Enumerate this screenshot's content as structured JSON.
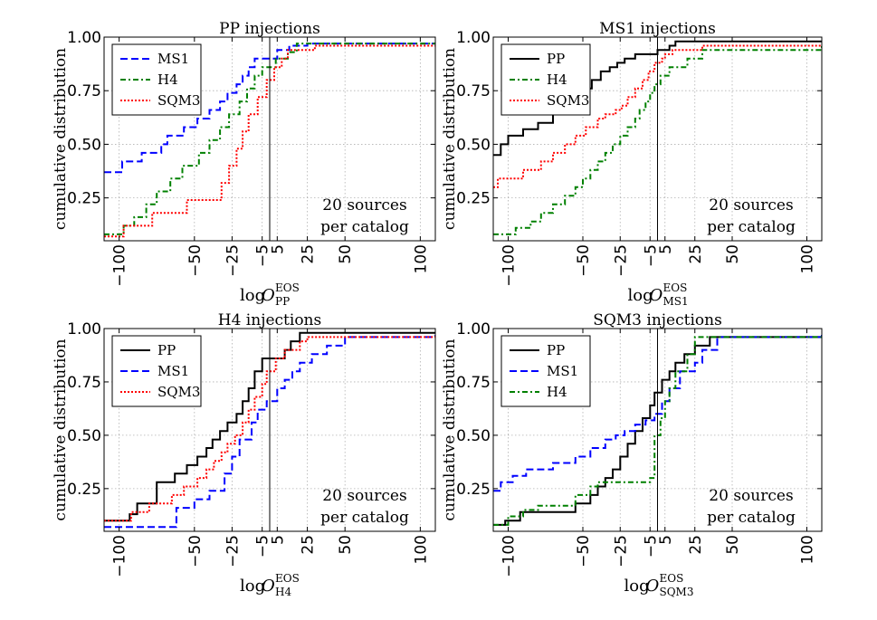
{
  "chart_data": [
    {
      "type": "line",
      "title": "PP injections",
      "xlabel_base": "log",
      "xlabel_sym": "O",
      "xlabel_sup": "EOS",
      "xlabel_sub": "PP",
      "ylabel": "cumulative distribution",
      "xlim": [
        -110,
        110
      ],
      "ylim": [
        0.05,
        1.0
      ],
      "xticks": [
        -100,
        -50,
        -25,
        -5,
        5,
        25,
        50,
        100
      ],
      "xtick_labels": [
        "−100",
        "−50",
        "−25",
        "−5",
        "5",
        "25",
        "50",
        "100"
      ],
      "yticks": [
        0.25,
        0.5,
        0.75,
        1.0
      ],
      "ytick_labels": [
        "0.25",
        "0.50",
        "0.75",
        "1.00"
      ],
      "vline": 0,
      "annotation": [
        "20 sources",
        "per catalog"
      ],
      "series": [
        {
          "name": "MS1",
          "color": "#0000ff",
          "dash": "8,4",
          "x": [
            -110,
            -98,
            -85,
            -72,
            -68,
            -57,
            -48,
            -40,
            -33,
            -28,
            -22,
            -18,
            -14,
            -10,
            5,
            13,
            25,
            110
          ],
          "y": [
            0.37,
            0.42,
            0.46,
            0.5,
            0.54,
            0.58,
            0.62,
            0.66,
            0.7,
            0.74,
            0.78,
            0.82,
            0.86,
            0.9,
            0.94,
            0.96,
            0.97,
            0.97
          ]
        },
        {
          "name": "H4",
          "color": "#008000",
          "dash": "6,3,2,3",
          "x": [
            -110,
            -97,
            -90,
            -82,
            -75,
            -66,
            -58,
            -47,
            -40,
            -33,
            -27,
            -20,
            -15,
            -10,
            -5,
            4,
            12,
            18,
            110
          ],
          "y": [
            0.08,
            0.12,
            0.16,
            0.22,
            0.28,
            0.34,
            0.4,
            0.46,
            0.52,
            0.58,
            0.64,
            0.7,
            0.76,
            0.82,
            0.86,
            0.9,
            0.93,
            0.97,
            0.97
          ]
        },
        {
          "name": "SQM3",
          "color": "#ff0000",
          "dash": "2,2",
          "x": [
            -110,
            -97,
            -78,
            -55,
            -32,
            -27,
            -22,
            -18,
            -14,
            -8,
            -2,
            3,
            8,
            12,
            30,
            110
          ],
          "y": [
            0.07,
            0.12,
            0.18,
            0.24,
            0.32,
            0.4,
            0.48,
            0.56,
            0.64,
            0.72,
            0.8,
            0.86,
            0.9,
            0.94,
            0.96,
            0.96
          ]
        }
      ]
    },
    {
      "type": "line",
      "title": "MS1 injections",
      "xlabel_base": "log",
      "xlabel_sym": "O",
      "xlabel_sup": "EOS",
      "xlabel_sub": "MS1",
      "ylabel": "cumulative distribution",
      "xlim": [
        -110,
        110
      ],
      "ylim": [
        0.05,
        1.0
      ],
      "xticks": [
        -100,
        -50,
        -25,
        -5,
        5,
        25,
        50,
        100
      ],
      "xtick_labels": [
        "−100",
        "−50",
        "−25",
        "−5",
        "5",
        "25",
        "50",
        "100"
      ],
      "yticks": [
        0.25,
        0.5,
        0.75,
        1.0
      ],
      "ytick_labels": [
        "0.25",
        "0.50",
        "0.75",
        "1.00"
      ],
      "vline": 0,
      "annotation": [
        "20 sources",
        "per catalog"
      ],
      "series": [
        {
          "name": "PP",
          "color": "#000000",
          "dash": "",
          "x": [
            -110,
            -105,
            -100,
            -90,
            -80,
            -70,
            -60,
            -55,
            -50,
            -44,
            -38,
            -32,
            -27,
            -22,
            -15,
            -8,
            0,
            8,
            12,
            20,
            110
          ],
          "y": [
            0.45,
            0.5,
            0.54,
            0.57,
            0.6,
            0.64,
            0.68,
            0.72,
            0.76,
            0.8,
            0.84,
            0.86,
            0.88,
            0.9,
            0.92,
            0.92,
            0.94,
            0.96,
            0.98,
            0.98,
            0.98
          ]
        },
        {
          "name": "H4",
          "color": "#008000",
          "dash": "6,3,2,3",
          "x": [
            -110,
            -95,
            -85,
            -78,
            -70,
            -62,
            -55,
            -50,
            -45,
            -40,
            -35,
            -30,
            -25,
            -20,
            -15,
            -12,
            -8,
            -5,
            -2,
            2,
            8,
            20,
            30,
            110
          ],
          "y": [
            0.08,
            0.11,
            0.14,
            0.18,
            0.22,
            0.26,
            0.3,
            0.34,
            0.38,
            0.42,
            0.46,
            0.5,
            0.54,
            0.58,
            0.62,
            0.66,
            0.7,
            0.74,
            0.78,
            0.82,
            0.86,
            0.9,
            0.94,
            0.97
          ]
        },
        {
          "name": "SQM3",
          "color": "#ff0000",
          "dash": "2,2",
          "x": [
            -110,
            -107,
            -90,
            -78,
            -70,
            -62,
            -55,
            -48,
            -40,
            -35,
            -28,
            -24,
            -20,
            -15,
            -10,
            -6,
            -2,
            3,
            5,
            10,
            30,
            110
          ],
          "y": [
            0.3,
            0.34,
            0.38,
            0.42,
            0.46,
            0.5,
            0.54,
            0.58,
            0.62,
            0.64,
            0.66,
            0.68,
            0.72,
            0.76,
            0.8,
            0.84,
            0.88,
            0.9,
            0.92,
            0.94,
            0.96,
            0.96
          ]
        }
      ]
    },
    {
      "type": "line",
      "title": "H4 injections",
      "xlabel_base": "log",
      "xlabel_sym": "O",
      "xlabel_sup": "EOS",
      "xlabel_sub": "H4",
      "ylabel": "cumulative distribution",
      "xlim": [
        -110,
        110
      ],
      "ylim": [
        0.05,
        1.0
      ],
      "xticks": [
        -100,
        -50,
        -25,
        -5,
        5,
        25,
        50,
        100
      ],
      "xtick_labels": [
        "−100",
        "−50",
        "−25",
        "−5",
        "5",
        "25",
        "50",
        "100"
      ],
      "yticks": [
        0.25,
        0.5,
        0.75,
        1.0
      ],
      "ytick_labels": [
        "0.25",
        "0.50",
        "0.75",
        "1.00"
      ],
      "vline": 0,
      "annotation": [
        "20 sources",
        "per catalog"
      ],
      "series": [
        {
          "name": "PP",
          "color": "#000000",
          "dash": "",
          "x": [
            -110,
            -93,
            -88,
            -75,
            -63,
            -55,
            -48,
            -42,
            -38,
            -33,
            -28,
            -22,
            -18,
            -14,
            -10,
            -5,
            0,
            10,
            14,
            20,
            110
          ],
          "y": [
            0.1,
            0.13,
            0.18,
            0.28,
            0.32,
            0.36,
            0.4,
            0.44,
            0.48,
            0.52,
            0.56,
            0.6,
            0.66,
            0.72,
            0.8,
            0.86,
            0.86,
            0.9,
            0.94,
            0.98,
            0.98
          ]
        },
        {
          "name": "MS1",
          "color": "#0000ff",
          "dash": "8,4",
          "x": [
            -110,
            -62,
            -50,
            -40,
            -30,
            -25,
            -20,
            -12,
            -8,
            -2,
            5,
            10,
            15,
            20,
            28,
            38,
            50,
            110
          ],
          "y": [
            0.07,
            0.16,
            0.2,
            0.24,
            0.32,
            0.4,
            0.48,
            0.56,
            0.62,
            0.66,
            0.72,
            0.76,
            0.8,
            0.84,
            0.88,
            0.92,
            0.96,
            0.97
          ]
        },
        {
          "name": "SQM3",
          "color": "#ff0000",
          "dash": "2,2",
          "x": [
            -110,
            -92,
            -80,
            -65,
            -57,
            -48,
            -42,
            -37,
            -32,
            -28,
            -23,
            -18,
            -14,
            -10,
            -5,
            -2,
            4,
            10,
            20,
            25,
            110
          ],
          "y": [
            0.1,
            0.14,
            0.18,
            0.22,
            0.26,
            0.3,
            0.34,
            0.38,
            0.42,
            0.46,
            0.5,
            0.56,
            0.62,
            0.68,
            0.74,
            0.8,
            0.86,
            0.9,
            0.94,
            0.96,
            0.97
          ]
        }
      ]
    },
    {
      "type": "line",
      "title": "SQM3 injections",
      "xlabel_base": "log",
      "xlabel_sym": "O",
      "xlabel_sup": "EOS",
      "xlabel_sub": "SQM3",
      "ylabel": "cumulative distribution",
      "xlim": [
        -110,
        110
      ],
      "ylim": [
        0.05,
        1.0
      ],
      "xticks": [
        -100,
        -50,
        -25,
        -5,
        5,
        25,
        50,
        100
      ],
      "xtick_labels": [
        "−100",
        "−50",
        "−25",
        "−5",
        "5",
        "25",
        "50",
        "100"
      ],
      "yticks": [
        0.25,
        0.5,
        0.75,
        1.0
      ],
      "ytick_labels": [
        "0.25",
        "0.50",
        "0.75",
        "1.00"
      ],
      "vline": 0,
      "annotation": [
        "20 sources",
        "per catalog"
      ],
      "series": [
        {
          "name": "PP",
          "color": "#000000",
          "dash": "",
          "x": [
            -110,
            -102,
            -92,
            -55,
            -45,
            -40,
            -35,
            -30,
            -25,
            -20,
            -15,
            -10,
            -5,
            -2,
            3,
            8,
            12,
            18,
            25,
            35,
            110
          ],
          "y": [
            0.08,
            0.1,
            0.14,
            0.18,
            0.22,
            0.26,
            0.3,
            0.34,
            0.4,
            0.46,
            0.52,
            0.58,
            0.64,
            0.7,
            0.76,
            0.8,
            0.84,
            0.88,
            0.92,
            0.96,
            0.97
          ]
        },
        {
          "name": "MS1",
          "color": "#0000ff",
          "dash": "8,4",
          "x": [
            -110,
            -105,
            -97,
            -88,
            -70,
            -55,
            -45,
            -35,
            -28,
            -22,
            -15,
            -8,
            -2,
            3,
            8,
            15,
            25,
            30,
            40,
            110
          ],
          "y": [
            0.24,
            0.28,
            0.31,
            0.34,
            0.37,
            0.4,
            0.44,
            0.48,
            0.5,
            0.52,
            0.55,
            0.57,
            0.6,
            0.66,
            0.72,
            0.8,
            0.84,
            0.9,
            0.96,
            0.97
          ]
        },
        {
          "name": "H4",
          "color": "#008000",
          "dash": "6,3,2,3",
          "x": [
            -110,
            -100,
            -90,
            -80,
            -55,
            -45,
            -40,
            -30,
            -5,
            -2,
            2,
            5,
            8,
            12,
            20,
            25,
            110
          ],
          "y": [
            0.08,
            0.12,
            0.15,
            0.17,
            0.22,
            0.26,
            0.28,
            0.28,
            0.3,
            0.5,
            0.58,
            0.66,
            0.72,
            0.8,
            0.88,
            0.96,
            0.97
          ]
        }
      ]
    }
  ]
}
